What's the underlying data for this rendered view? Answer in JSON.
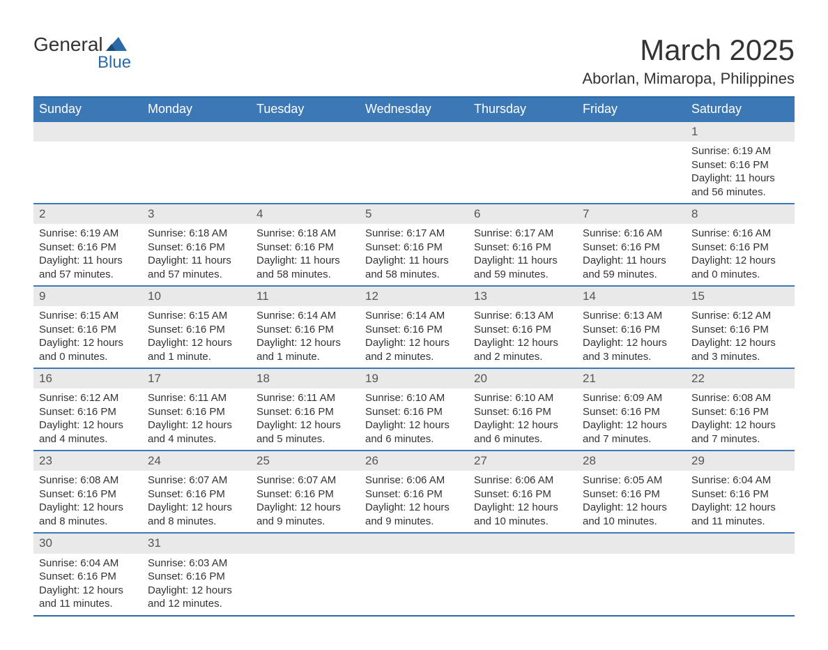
{
  "logo": {
    "text1": "General",
    "text2": "Blue",
    "icon_color": "#2b6aa8"
  },
  "title": {
    "month_year": "March 2025",
    "location": "Aborlan, Mimaropa, Philippines"
  },
  "colors": {
    "header_bg": "#3b78b5",
    "header_text": "#ffffff",
    "row_border": "#3b78b5",
    "daynum_bg": "#e9e9e9",
    "text": "#333333",
    "logo_accent": "#2b6aa8"
  },
  "weekdays": [
    "Sunday",
    "Monday",
    "Tuesday",
    "Wednesday",
    "Thursday",
    "Friday",
    "Saturday"
  ],
  "weeks": [
    [
      null,
      null,
      null,
      null,
      null,
      null,
      {
        "n": "1",
        "sunrise": "Sunrise: 6:19 AM",
        "sunset": "Sunset: 6:16 PM",
        "daylight": "Daylight: 11 hours and 56 minutes."
      }
    ],
    [
      {
        "n": "2",
        "sunrise": "Sunrise: 6:19 AM",
        "sunset": "Sunset: 6:16 PM",
        "daylight": "Daylight: 11 hours and 57 minutes."
      },
      {
        "n": "3",
        "sunrise": "Sunrise: 6:18 AM",
        "sunset": "Sunset: 6:16 PM",
        "daylight": "Daylight: 11 hours and 57 minutes."
      },
      {
        "n": "4",
        "sunrise": "Sunrise: 6:18 AM",
        "sunset": "Sunset: 6:16 PM",
        "daylight": "Daylight: 11 hours and 58 minutes."
      },
      {
        "n": "5",
        "sunrise": "Sunrise: 6:17 AM",
        "sunset": "Sunset: 6:16 PM",
        "daylight": "Daylight: 11 hours and 58 minutes."
      },
      {
        "n": "6",
        "sunrise": "Sunrise: 6:17 AM",
        "sunset": "Sunset: 6:16 PM",
        "daylight": "Daylight: 11 hours and 59 minutes."
      },
      {
        "n": "7",
        "sunrise": "Sunrise: 6:16 AM",
        "sunset": "Sunset: 6:16 PM",
        "daylight": "Daylight: 11 hours and 59 minutes."
      },
      {
        "n": "8",
        "sunrise": "Sunrise: 6:16 AM",
        "sunset": "Sunset: 6:16 PM",
        "daylight": "Daylight: 12 hours and 0 minutes."
      }
    ],
    [
      {
        "n": "9",
        "sunrise": "Sunrise: 6:15 AM",
        "sunset": "Sunset: 6:16 PM",
        "daylight": "Daylight: 12 hours and 0 minutes."
      },
      {
        "n": "10",
        "sunrise": "Sunrise: 6:15 AM",
        "sunset": "Sunset: 6:16 PM",
        "daylight": "Daylight: 12 hours and 1 minute."
      },
      {
        "n": "11",
        "sunrise": "Sunrise: 6:14 AM",
        "sunset": "Sunset: 6:16 PM",
        "daylight": "Daylight: 12 hours and 1 minute."
      },
      {
        "n": "12",
        "sunrise": "Sunrise: 6:14 AM",
        "sunset": "Sunset: 6:16 PM",
        "daylight": "Daylight: 12 hours and 2 minutes."
      },
      {
        "n": "13",
        "sunrise": "Sunrise: 6:13 AM",
        "sunset": "Sunset: 6:16 PM",
        "daylight": "Daylight: 12 hours and 2 minutes."
      },
      {
        "n": "14",
        "sunrise": "Sunrise: 6:13 AM",
        "sunset": "Sunset: 6:16 PM",
        "daylight": "Daylight: 12 hours and 3 minutes."
      },
      {
        "n": "15",
        "sunrise": "Sunrise: 6:12 AM",
        "sunset": "Sunset: 6:16 PM",
        "daylight": "Daylight: 12 hours and 3 minutes."
      }
    ],
    [
      {
        "n": "16",
        "sunrise": "Sunrise: 6:12 AM",
        "sunset": "Sunset: 6:16 PM",
        "daylight": "Daylight: 12 hours and 4 minutes."
      },
      {
        "n": "17",
        "sunrise": "Sunrise: 6:11 AM",
        "sunset": "Sunset: 6:16 PM",
        "daylight": "Daylight: 12 hours and 4 minutes."
      },
      {
        "n": "18",
        "sunrise": "Sunrise: 6:11 AM",
        "sunset": "Sunset: 6:16 PM",
        "daylight": "Daylight: 12 hours and 5 minutes."
      },
      {
        "n": "19",
        "sunrise": "Sunrise: 6:10 AM",
        "sunset": "Sunset: 6:16 PM",
        "daylight": "Daylight: 12 hours and 6 minutes."
      },
      {
        "n": "20",
        "sunrise": "Sunrise: 6:10 AM",
        "sunset": "Sunset: 6:16 PM",
        "daylight": "Daylight: 12 hours and 6 minutes."
      },
      {
        "n": "21",
        "sunrise": "Sunrise: 6:09 AM",
        "sunset": "Sunset: 6:16 PM",
        "daylight": "Daylight: 12 hours and 7 minutes."
      },
      {
        "n": "22",
        "sunrise": "Sunrise: 6:08 AM",
        "sunset": "Sunset: 6:16 PM",
        "daylight": "Daylight: 12 hours and 7 minutes."
      }
    ],
    [
      {
        "n": "23",
        "sunrise": "Sunrise: 6:08 AM",
        "sunset": "Sunset: 6:16 PM",
        "daylight": "Daylight: 12 hours and 8 minutes."
      },
      {
        "n": "24",
        "sunrise": "Sunrise: 6:07 AM",
        "sunset": "Sunset: 6:16 PM",
        "daylight": "Daylight: 12 hours and 8 minutes."
      },
      {
        "n": "25",
        "sunrise": "Sunrise: 6:07 AM",
        "sunset": "Sunset: 6:16 PM",
        "daylight": "Daylight: 12 hours and 9 minutes."
      },
      {
        "n": "26",
        "sunrise": "Sunrise: 6:06 AM",
        "sunset": "Sunset: 6:16 PM",
        "daylight": "Daylight: 12 hours and 9 minutes."
      },
      {
        "n": "27",
        "sunrise": "Sunrise: 6:06 AM",
        "sunset": "Sunset: 6:16 PM",
        "daylight": "Daylight: 12 hours and 10 minutes."
      },
      {
        "n": "28",
        "sunrise": "Sunrise: 6:05 AM",
        "sunset": "Sunset: 6:16 PM",
        "daylight": "Daylight: 12 hours and 10 minutes."
      },
      {
        "n": "29",
        "sunrise": "Sunrise: 6:04 AM",
        "sunset": "Sunset: 6:16 PM",
        "daylight": "Daylight: 12 hours and 11 minutes."
      }
    ],
    [
      {
        "n": "30",
        "sunrise": "Sunrise: 6:04 AM",
        "sunset": "Sunset: 6:16 PM",
        "daylight": "Daylight: 12 hours and 11 minutes."
      },
      {
        "n": "31",
        "sunrise": "Sunrise: 6:03 AM",
        "sunset": "Sunset: 6:16 PM",
        "daylight": "Daylight: 12 hours and 12 minutes."
      },
      null,
      null,
      null,
      null,
      null
    ]
  ]
}
